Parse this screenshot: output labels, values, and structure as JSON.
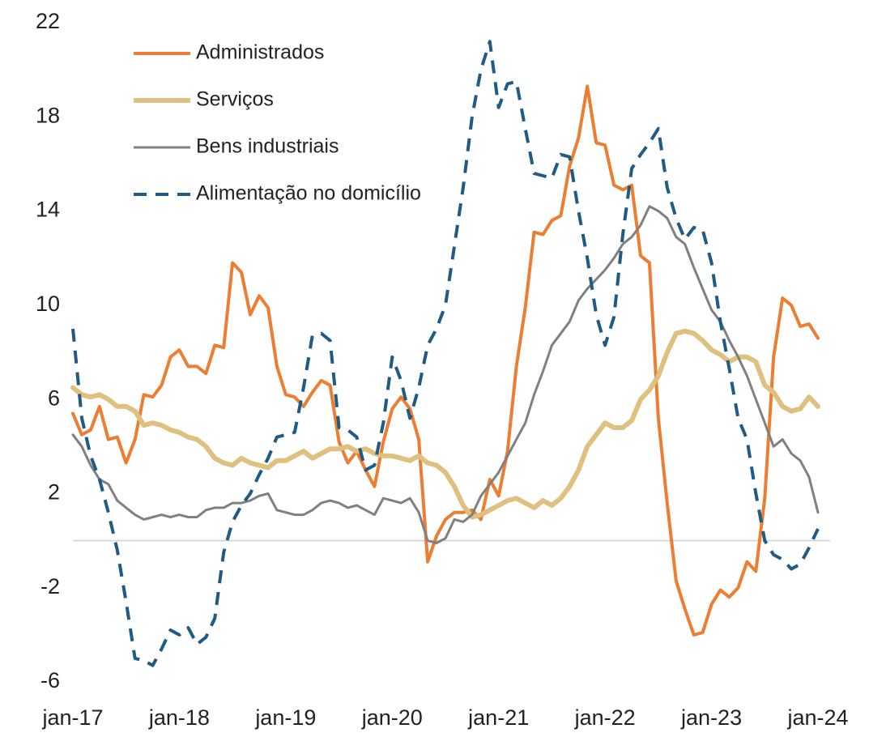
{
  "chart_data": {
    "type": "line",
    "categories": [
      "jan-17",
      null,
      null,
      null,
      null,
      null,
      null,
      null,
      null,
      null,
      null,
      null,
      "jan-18",
      null,
      null,
      null,
      null,
      null,
      null,
      null,
      null,
      null,
      null,
      null,
      "jan-19",
      null,
      null,
      null,
      null,
      null,
      null,
      null,
      null,
      null,
      null,
      null,
      "jan-20",
      null,
      null,
      null,
      null,
      null,
      null,
      null,
      null,
      null,
      null,
      null,
      "jan-21",
      null,
      null,
      null,
      null,
      null,
      null,
      null,
      null,
      null,
      null,
      null,
      "jan-22",
      null,
      null,
      null,
      null,
      null,
      null,
      null,
      null,
      null,
      null,
      null,
      "jan-23",
      null,
      null,
      null,
      null,
      null,
      null,
      null,
      null,
      null,
      null,
      null,
      "jan-24"
    ],
    "ylim": [
      -6,
      22
    ],
    "yticks": [
      -6,
      -2,
      2,
      6,
      10,
      14,
      18,
      22
    ],
    "legend": "upper left",
    "series": [
      {
        "name": "Administrados",
        "color": "#ed7d31",
        "width": 4,
        "dash": false,
        "values": [
          5.4,
          4.5,
          4.7,
          5.7,
          4.3,
          4.4,
          3.3,
          4.3,
          6.2,
          6.1,
          6.6,
          7.8,
          8.1,
          7.4,
          7.4,
          7.1,
          8.3,
          8.2,
          11.8,
          11.4,
          9.6,
          10.4,
          9.9,
          7.4,
          6.2,
          6.1,
          5.7,
          6.3,
          6.8,
          6.6,
          4.2,
          3.3,
          3.8,
          3.0,
          2.3,
          4.2,
          5.6,
          6.1,
          5.6,
          4.3,
          -0.9,
          0.2,
          0.9,
          1.2,
          1.2,
          1.3,
          0.9,
          2.6,
          1.9,
          3.8,
          7.4,
          9.9,
          13.1,
          13.0,
          13.6,
          13.8,
          15.9,
          17.1,
          19.3,
          16.9,
          16.8,
          15.1,
          14.9,
          15.1,
          12.1,
          11.8,
          5.2,
          1.6,
          -1.7,
          -2.9,
          -4.0,
          -3.9,
          -2.7,
          -2.1,
          -2.4,
          -2.0,
          -0.9,
          -1.3,
          1.8,
          7.8,
          10.3,
          10.0,
          9.1,
          9.2,
          8.6
        ]
      },
      {
        "name": "Serviços",
        "color": "#e0c07f",
        "width": 6,
        "dash": false,
        "values": [
          6.5,
          6.2,
          6.1,
          6.2,
          6.0,
          5.7,
          5.7,
          5.5,
          4.9,
          5.0,
          4.9,
          4.7,
          4.6,
          4.4,
          4.3,
          4.0,
          3.5,
          3.3,
          3.2,
          3.5,
          3.3,
          3.2,
          3.1,
          3.4,
          3.4,
          3.6,
          3.8,
          3.5,
          3.7,
          3.9,
          3.9,
          4.0,
          3.8,
          3.9,
          3.7,
          3.6,
          3.6,
          3.5,
          3.4,
          3.6,
          3.3,
          3.2,
          2.9,
          2.3,
          1.5,
          1.0,
          1.1,
          1.3,
          1.5,
          1.7,
          1.8,
          1.6,
          1.4,
          1.7,
          1.5,
          1.8,
          2.3,
          3.0,
          4.0,
          4.5,
          5.0,
          4.8,
          4.8,
          5.1,
          6.0,
          6.4,
          7.0,
          8.0,
          8.8,
          8.9,
          8.8,
          8.5,
          8.1,
          7.9,
          7.6,
          7.8,
          7.8,
          7.6,
          6.6,
          6.3,
          5.7,
          5.5,
          5.6,
          6.1,
          5.7
        ]
      },
      {
        "name": "Bens industriais",
        "color": "#808080",
        "width": 3,
        "dash": false,
        "values": [
          4.5,
          4.0,
          3.2,
          2.6,
          2.4,
          1.7,
          1.4,
          1.1,
          0.9,
          1.0,
          1.1,
          1.0,
          1.1,
          1.0,
          1.0,
          1.3,
          1.4,
          1.4,
          1.6,
          1.6,
          1.7,
          1.9,
          2.0,
          1.3,
          1.2,
          1.1,
          1.1,
          1.3,
          1.6,
          1.7,
          1.6,
          1.4,
          1.5,
          1.3,
          1.1,
          1.8,
          1.7,
          1.6,
          1.8,
          1.2,
          0.0,
          -0.1,
          0.1,
          0.9,
          0.8,
          1.1,
          1.9,
          2.4,
          2.9,
          3.6,
          4.3,
          5.0,
          6.2,
          7.2,
          8.3,
          8.8,
          9.3,
          10.2,
          10.7,
          11.1,
          11.5,
          12.0,
          12.6,
          12.9,
          13.4,
          14.2,
          14.0,
          13.7,
          12.9,
          12.6,
          11.6,
          10.7,
          9.8,
          9.3,
          8.5,
          7.8,
          7.0,
          6.0,
          5.0,
          4.0,
          4.3,
          3.7,
          3.4,
          2.7,
          1.2
        ]
      },
      {
        "name": "Alimentação no domicílio",
        "color": "#1f5b85",
        "width": 4,
        "dash": true,
        "values": [
          9.0,
          5.2,
          3.6,
          2.6,
          1.2,
          -0.4,
          -2.6,
          -5.0,
          -5.1,
          -5.3,
          -4.6,
          -3.8,
          -4.0,
          -3.7,
          -4.4,
          -4.1,
          -3.3,
          -0.5,
          0.8,
          1.5,
          2.0,
          2.8,
          3.5,
          4.4,
          4.5,
          4.6,
          6.5,
          8.7,
          8.8,
          8.5,
          4.8,
          4.7,
          4.4,
          3.0,
          3.2,
          5.0,
          7.8,
          6.8,
          5.2,
          6.5,
          8.3,
          9.0,
          10.0,
          12.5,
          15.0,
          18.0,
          20.0,
          21.2,
          18.4,
          19.4,
          19.5,
          17.5,
          15.6,
          15.5,
          15.4,
          16.4,
          16.3,
          14.0,
          12.0,
          9.6,
          8.3,
          9.5,
          13.0,
          15.8,
          16.4,
          16.9,
          17.5,
          15.0,
          13.7,
          12.8,
          13.3,
          13.2,
          11.8,
          9.3,
          7.3,
          5.2,
          4.3,
          2.0,
          0.0,
          -0.6,
          -0.8,
          -1.2,
          -1.0,
          -0.3,
          0.5
        ]
      }
    ]
  }
}
